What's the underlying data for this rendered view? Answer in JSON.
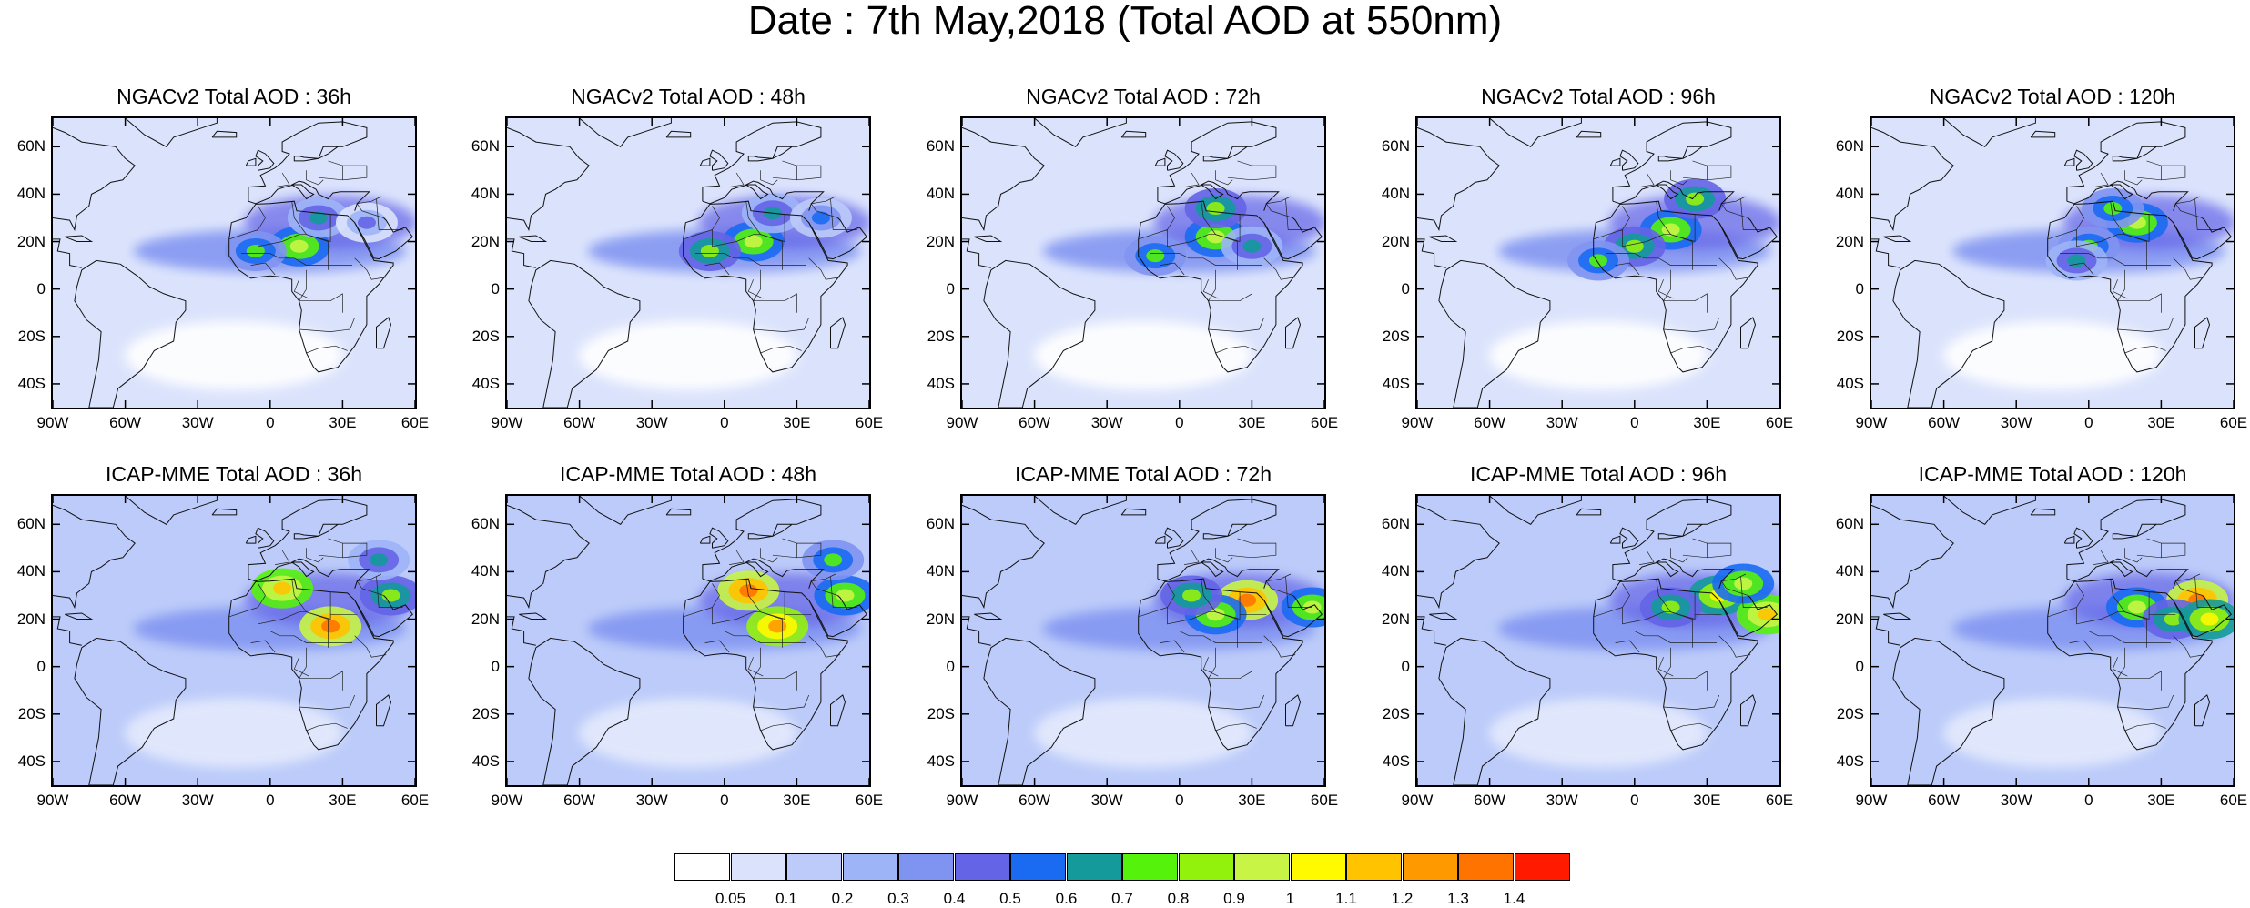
{
  "title": "Date : 7th May,2018 (Total AOD at 550nm)",
  "panels": [
    {
      "title": "NGACv2 Total AOD : 36h",
      "model": "NGACv2",
      "lead": "36h",
      "plumes": [
        {
          "lon": 12,
          "lat": 18,
          "level": 10
        },
        {
          "lon": -6,
          "lat": 16,
          "level": 8
        },
        {
          "lon": 20,
          "lat": 30,
          "level": 7
        },
        {
          "lon": 40,
          "lat": 28,
          "level": 5
        }
      ]
    },
    {
      "title": "NGACv2 Total AOD : 48h",
      "model": "NGACv2",
      "lead": "48h",
      "plumes": [
        {
          "lon": 12,
          "lat": 20,
          "level": 10
        },
        {
          "lon": -6,
          "lat": 16,
          "level": 9
        },
        {
          "lon": 20,
          "lat": 32,
          "level": 7
        },
        {
          "lon": 40,
          "lat": 30,
          "level": 6
        }
      ]
    },
    {
      "title": "NGACv2 Total AOD : 72h",
      "model": "NGACv2",
      "lead": "72h",
      "plumes": [
        {
          "lon": 15,
          "lat": 22,
          "level": 10
        },
        {
          "lon": -10,
          "lat": 14,
          "level": 8
        },
        {
          "lon": 15,
          "lat": 34,
          "level": 9
        },
        {
          "lon": 30,
          "lat": 18,
          "level": 7
        }
      ]
    },
    {
      "title": "NGACv2 Total AOD : 96h",
      "model": "NGACv2",
      "lead": "96h",
      "plumes": [
        {
          "lon": 15,
          "lat": 25,
          "level": 10
        },
        {
          "lon": 0,
          "lat": 18,
          "level": 9
        },
        {
          "lon": 25,
          "lat": 38,
          "level": 9
        },
        {
          "lon": -15,
          "lat": 12,
          "level": 8
        }
      ]
    },
    {
      "title": "NGACv2 Total AOD : 120h",
      "model": "NGACv2",
      "lead": "120h",
      "plumes": [
        {
          "lon": 20,
          "lat": 28,
          "level": 10
        },
        {
          "lon": 0,
          "lat": 18,
          "level": 8
        },
        {
          "lon": 10,
          "lat": 34,
          "level": 8
        },
        {
          "lon": -5,
          "lat": 12,
          "level": 7
        }
      ]
    },
    {
      "title": "ICAP-MME Total AOD : 36h",
      "model": "ICAP-MME",
      "lead": "36h",
      "plumes": [
        {
          "lon": 25,
          "lat": 17,
          "level": 14
        },
        {
          "lon": 50,
          "lat": 30,
          "level": 9
        },
        {
          "lon": 5,
          "lat": 33,
          "level": 12
        },
        {
          "lon": 45,
          "lat": 45,
          "level": 7
        }
      ]
    },
    {
      "title": "ICAP-MME Total AOD : 48h",
      "model": "ICAP-MME",
      "lead": "48h",
      "plumes": [
        {
          "lon": 22,
          "lat": 17,
          "level": 13
        },
        {
          "lon": 10,
          "lat": 32,
          "level": 14
        },
        {
          "lon": 50,
          "lat": 30,
          "level": 10
        },
        {
          "lon": 45,
          "lat": 45,
          "level": 8
        }
      ]
    },
    {
      "title": "ICAP-MME Total AOD : 72h",
      "model": "ICAP-MME",
      "lead": "72h",
      "plumes": [
        {
          "lon": 28,
          "lat": 28,
          "level": 14
        },
        {
          "lon": 15,
          "lat": 22,
          "level": 10
        },
        {
          "lon": 55,
          "lat": 25,
          "level": 10
        },
        {
          "lon": 5,
          "lat": 30,
          "level": 9
        }
      ]
    },
    {
      "title": "ICAP-MME Total AOD : 96h",
      "model": "ICAP-MME",
      "lead": "96h",
      "plumes": [
        {
          "lon": 35,
          "lat": 30,
          "level": 11
        },
        {
          "lon": 15,
          "lat": 25,
          "level": 9
        },
        {
          "lon": 55,
          "lat": 22,
          "level": 12
        },
        {
          "lon": 45,
          "lat": 35,
          "level": 10
        }
      ]
    },
    {
      "title": "ICAP-MME Total AOD : 120h",
      "model": "ICAP-MME",
      "lead": "120h",
      "plumes": [
        {
          "lon": 45,
          "lat": 28,
          "level": 14
        },
        {
          "lon": 20,
          "lat": 25,
          "level": 10
        },
        {
          "lon": 35,
          "lat": 20,
          "level": 9
        },
        {
          "lon": 50,
          "lat": 20,
          "level": 11
        }
      ]
    }
  ],
  "lat_ticks": [
    "60N",
    "40N",
    "20N",
    "0",
    "20S",
    "40S"
  ],
  "lat_values": [
    60,
    40,
    20,
    0,
    -20,
    -40
  ],
  "lon_ticks": [
    "90W",
    "60W",
    "30W",
    "0",
    "30E",
    "60E"
  ],
  "lon_values": [
    -90,
    -60,
    -30,
    0,
    30,
    60
  ],
  "extent": {
    "lon": [
      -90,
      60
    ],
    "lat": [
      -50,
      72
    ]
  },
  "colorbar": {
    "labels": [
      "0.05",
      "0.1",
      "0.2",
      "0.3",
      "0.4",
      "0.5",
      "0.6",
      "0.7",
      "0.8",
      "0.9",
      "1",
      "1.1",
      "1.2",
      "1.3",
      "1.4"
    ],
    "colors": [
      "#ffffff",
      "#dbe3fc",
      "#bccbf9",
      "#9db4f7",
      "#7f93f1",
      "#6464e6",
      "#1a6af2",
      "#149a9a",
      "#55f20c",
      "#93f20c",
      "#c8f545",
      "#fffa00",
      "#ffc300",
      "#ff9900",
      "#ff7300",
      "#ff1a00"
    ]
  }
}
